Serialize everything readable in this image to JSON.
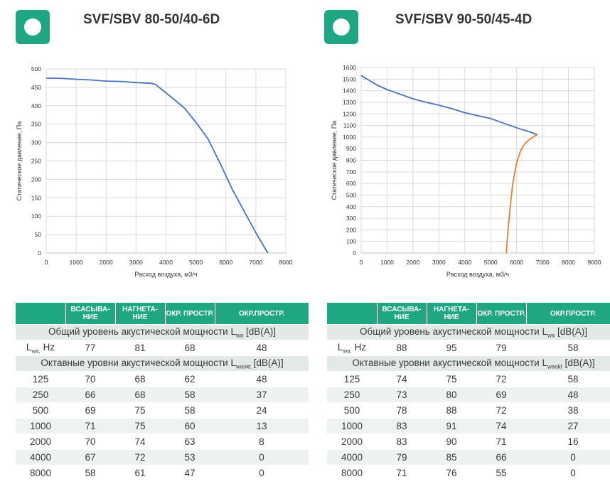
{
  "panels": [
    {
      "title": "SVF/SBV 80-50/40-6D",
      "chart": {
        "type": "line",
        "xlabel": "Расход воздуха, м3/ч",
        "ylabel": "Статическое давление, Па",
        "xlim": [
          0,
          8000
        ],
        "ylim": [
          0,
          500
        ],
        "xticks": [
          "0",
          "1000",
          "2000",
          "3000",
          "4000",
          "5000",
          "6000",
          "7000",
          "8000"
        ],
        "yticks": [
          "0",
          "50",
          "100",
          "150",
          "200",
          "250",
          "300",
          "350",
          "400",
          "450",
          "500"
        ],
        "series": [
          {
            "color": "#4472c4",
            "x": [
              0,
              300,
              600,
              1000,
              1500,
              2000,
              2500,
              3000,
              3500,
              3650,
              3800,
              4000,
              4300,
              4600,
              5000,
              5400,
              5800,
              6200,
              6600,
              7000,
              7400
            ],
            "y": [
              475,
              475,
              474,
              472,
              470,
              467,
              466,
              463,
              461,
              458,
              448,
              435,
              415,
              395,
              355,
              310,
              245,
              175,
              115,
              55,
              0
            ]
          }
        ]
      },
      "table": {
        "headers": [
          "",
          "ВСАСЫВА-НИЕ",
          "НАГНЕТА-НИЕ",
          "ОКР. ПРОСТР.",
          "ОКР.ПРОСТР."
        ],
        "total_label_text": "Общий уровень акустической мощности L",
        "total_label_sub": "wa",
        "total_label_unit": " [dB(A)]",
        "lwa_label": "L",
        "lwa_sub": "wa,",
        "lwa_hz": " Hz",
        "lwa_values": [
          "77",
          "81",
          "68",
          "48"
        ],
        "octave_label_text": "Октавные уровни акустической мощности L",
        "octave_label_sub": "waokt",
        "octave_label_unit": " [dB(A)]",
        "rows": [
          {
            "f": "125",
            "v": [
              "70",
              "68",
              "62",
              "48"
            ]
          },
          {
            "f": "250",
            "v": [
              "66",
              "68",
              "58",
              "37"
            ]
          },
          {
            "f": "500",
            "v": [
              "69",
              "75",
              "58",
              "24"
            ]
          },
          {
            "f": "1000",
            "v": [
              "71",
              "75",
              "60",
              "13"
            ]
          },
          {
            "f": "2000",
            "v": [
              "70",
              "74",
              "63",
              "8"
            ]
          },
          {
            "f": "4000",
            "v": [
              "67",
              "72",
              "53",
              "0"
            ]
          },
          {
            "f": "8000",
            "v": [
              "58",
              "61",
              "47",
              "0"
            ]
          }
        ]
      }
    },
    {
      "title": "SVF/SBV 90-50/45-4D",
      "chart": {
        "type": "line",
        "xlabel": "Расход воздуха, м3/ч",
        "ylabel": "Статическое давление, Па",
        "xlim": [
          0,
          9000
        ],
        "ylim": [
          0,
          1600
        ],
        "xticks": [
          "0",
          "1000",
          "2000",
          "3000",
          "4000",
          "5000",
          "6000",
          "7000",
          "8000",
          "9000"
        ],
        "yticks": [
          "0",
          "100",
          "200",
          "300",
          "400",
          "500",
          "600",
          "700",
          "800",
          "900",
          "1000",
          "1100",
          "1200",
          "1300",
          "1400",
          "1500",
          "1600"
        ],
        "series": [
          {
            "color": "#4472c4",
            "x": [
              0,
              300,
              600,
              1000,
              1500,
              2000,
              2500,
              3000,
              3500,
              4000,
              4500,
              5000,
              5500,
              6000,
              6500,
              6800
            ],
            "y": [
              1530,
              1490,
              1450,
              1410,
              1370,
              1330,
              1300,
              1275,
              1245,
              1210,
              1185,
              1160,
              1120,
              1080,
              1045,
              1020
            ]
          },
          {
            "color": "#ed7d31",
            "x": [
              5600,
              5650,
              5750,
              5850,
              6000,
              6150,
              6300,
              6500,
              6700,
              6800
            ],
            "y": [
              0,
              150,
              400,
              600,
              780,
              880,
              940,
              980,
              1010,
              1020
            ]
          }
        ]
      },
      "table": {
        "headers": [
          "",
          "ВСАСЫВА-НИЕ",
          "НАГНЕТА-НИЕ",
          "ОКР. ПРОСТР.",
          "ОКР.ПРОСТР."
        ],
        "total_label_text": "Общий уровень акустической мощности L",
        "total_label_sub": "wa",
        "total_label_unit": " [dB(A)]",
        "lwa_label": "L",
        "lwa_sub": "wa,",
        "lwa_hz": " Hz",
        "lwa_values": [
          "88",
          "95",
          "79",
          "58"
        ],
        "octave_label_text": "Октавные уровни акустической мощности L",
        "octave_label_sub": "waokt",
        "octave_label_unit": " [dB(A)]",
        "rows": [
          {
            "f": "125",
            "v": [
              "74",
              "75",
              "72",
              "58"
            ]
          },
          {
            "f": "250",
            "v": [
              "73",
              "80",
              "69",
              "48"
            ]
          },
          {
            "f": "500",
            "v": [
              "78",
              "88",
              "72",
              "38"
            ]
          },
          {
            "f": "1000",
            "v": [
              "83",
              "91",
              "74",
              "27"
            ]
          },
          {
            "f": "2000",
            "v": [
              "83",
              "90",
              "71",
              "16"
            ]
          },
          {
            "f": "4000",
            "v": [
              "79",
              "85",
              "66",
              "0"
            ]
          },
          {
            "f": "8000",
            "v": [
              "71",
              "76",
              "55",
              "0"
            ]
          }
        ]
      }
    }
  ],
  "chart_data": [
    {
      "type": "line",
      "title": "SVF/SBV 80-50/40-6D",
      "xlabel": "Расход воздуха, м3/ч",
      "ylabel": "Статическое давление, Па",
      "xlim": [
        0,
        8000
      ],
      "ylim": [
        0,
        500
      ],
      "grid": true,
      "series": [
        {
          "x": [
            0,
            300,
            600,
            1000,
            1500,
            2000,
            2500,
            3000,
            3500,
            3650,
            3800,
            4000,
            4300,
            4600,
            5000,
            5400,
            5800,
            6200,
            6600,
            7000,
            7400
          ],
          "y": [
            475,
            475,
            474,
            472,
            470,
            467,
            466,
            463,
            461,
            458,
            448,
            435,
            415,
            395,
            355,
            310,
            245,
            175,
            115,
            55,
            0
          ]
        }
      ]
    },
    {
      "type": "line",
      "title": "SVF/SBV 90-50/45-4D",
      "xlabel": "Расход воздуха, м3/ч",
      "ylabel": "Статическое давление, Па",
      "xlim": [
        0,
        9000
      ],
      "ylim": [
        0,
        1600
      ],
      "grid": true,
      "series": [
        {
          "x": [
            0,
            300,
            600,
            1000,
            1500,
            2000,
            2500,
            3000,
            3500,
            4000,
            4500,
            5000,
            5500,
            6000,
            6500,
            6800
          ],
          "y": [
            1530,
            1490,
            1450,
            1410,
            1370,
            1330,
            1300,
            1275,
            1245,
            1210,
            1185,
            1160,
            1120,
            1080,
            1045,
            1020
          ]
        },
        {
          "x": [
            5600,
            5650,
            5750,
            5850,
            6000,
            6150,
            6300,
            6500,
            6700,
            6800
          ],
          "y": [
            0,
            150,
            400,
            600,
            780,
            880,
            940,
            980,
            1010,
            1020
          ]
        }
      ]
    }
  ]
}
